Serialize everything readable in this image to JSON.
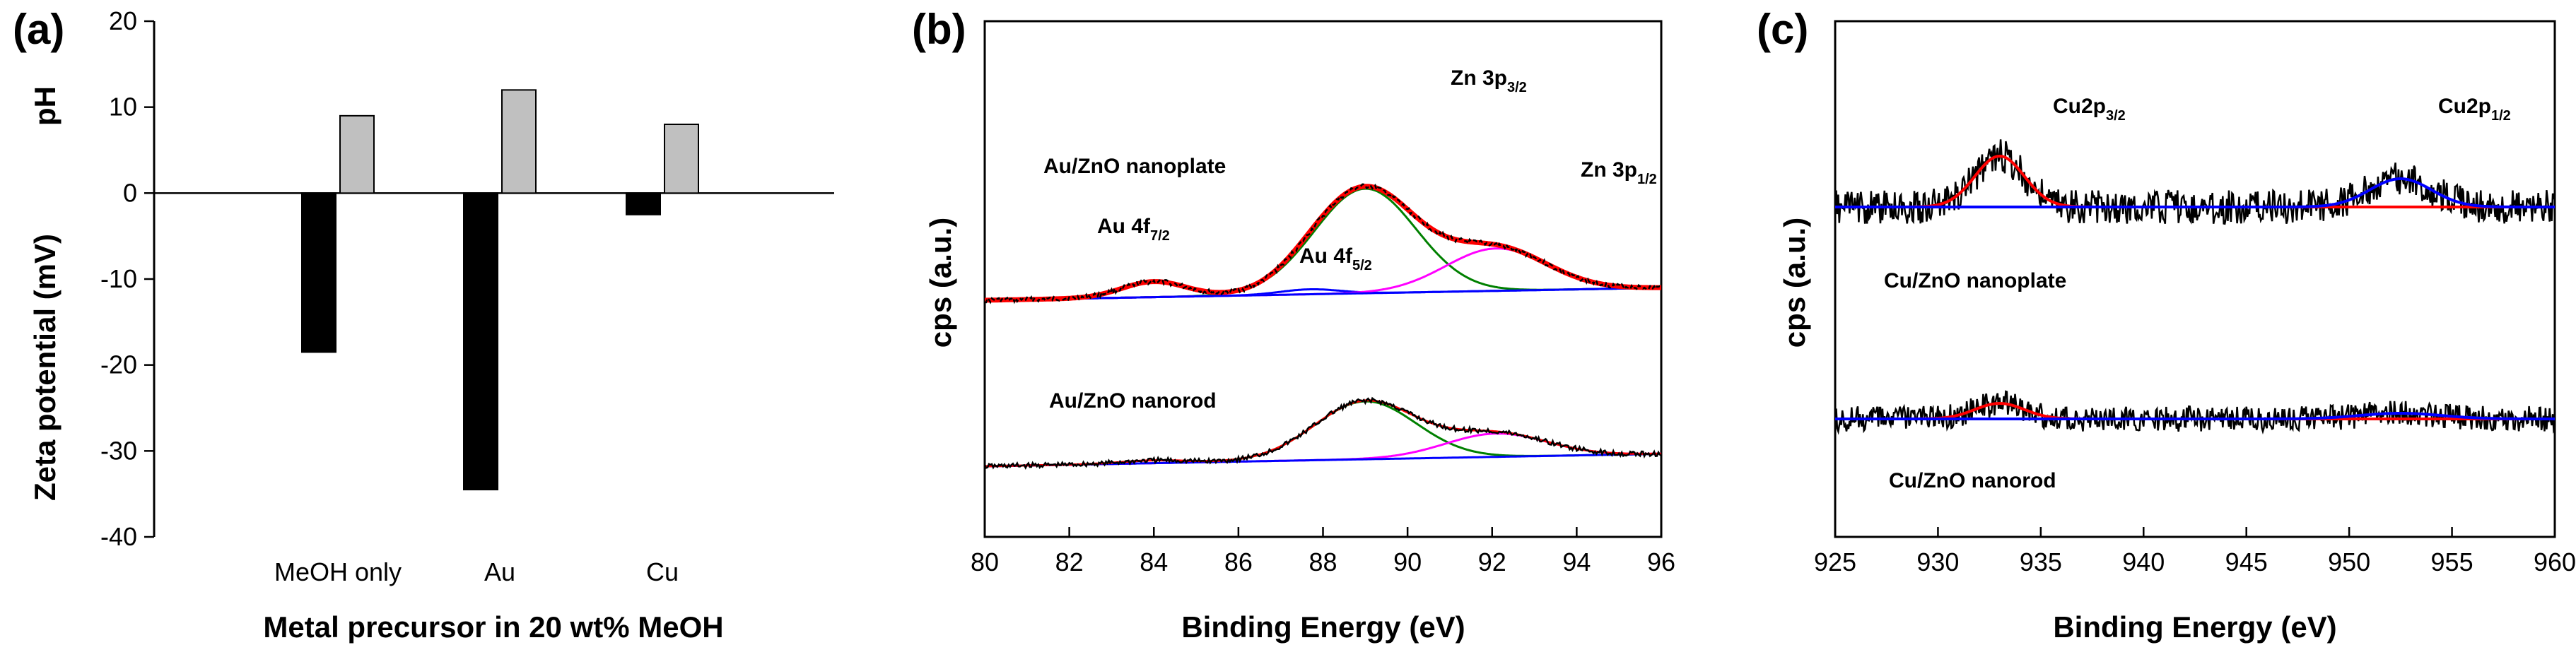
{
  "colors": {
    "black": "#000000",
    "gray": "#c0c0c0",
    "red": "#ff0000",
    "green": "#008000",
    "magenta": "#ff00ff",
    "blue": "#0000ff"
  },
  "chart_data": [
    {
      "type": "bar",
      "panel_label": "(a)",
      "categories": [
        "MeOH only",
        "Au",
        "Cu"
      ],
      "series": [
        {
          "name": "Zeta potential",
          "color": "#000000",
          "values": [
            -18.5,
            -34.5,
            -2.5
          ]
        },
        {
          "name": "pH",
          "color": "#c0c0c0",
          "values": [
            9,
            12,
            8
          ]
        }
      ],
      "ylim": [
        -40,
        20
      ],
      "yticks": [
        "20",
        "10",
        "0",
        "-10",
        "-20",
        "-30",
        "-40"
      ],
      "ylabel_top": "pH",
      "ylabel": "Zeta potential (mV)",
      "xlabel": "Metal precursor in 20 wt% MeOH",
      "grid": false
    },
    {
      "type": "line",
      "panel_label": "(b)",
      "xlabel": "Binding Energy (eV)",
      "ylabel": "cps (a.u.)",
      "xlim": [
        80,
        96
      ],
      "xticks": [
        "80",
        "82",
        "84",
        "86",
        "88",
        "90",
        "92",
        "94",
        "96"
      ],
      "annotations": {
        "nanoplate": "Au/ZnO nanoplate",
        "nanorod": "Au/ZnO nanorod",
        "au_f72_main": "Au 4f",
        "au_f72_sub": "7/2",
        "au_f52_main": "Au 4f",
        "au_f52_sub": "5/2",
        "zn_p32_main": "Zn 3p",
        "zn_p32_sub": "3/2",
        "zn_p12_main": "Zn 3p",
        "zn_p12_sub": "1/2"
      },
      "spectra": [
        {
          "name": "Au/ZnO nanoplate",
          "baseline": 185,
          "peaks": [
            {
              "label": "Au 4f7/2",
              "center": 84.0,
              "height": 22,
              "width": 0.75,
              "color": "#ff0000"
            },
            {
              "label": "Au 4f5/2",
              "center": 87.7,
              "height": 7,
              "width": 0.7,
              "color": "#0000ff"
            },
            {
              "label": "Zn 3p3/2",
              "center": 89.0,
              "height": 148,
              "width": 1.2,
              "color": "#008000"
            },
            {
              "label": "Zn 3p1/2",
              "center": 92.1,
              "height": 60,
              "width": 1.2,
              "color": "#ff00ff"
            }
          ]
        },
        {
          "name": "Au/ZnO nanorod",
          "baseline": 108,
          "peaks": [
            {
              "label": "Au 4f7/2",
              "center": 84.0,
              "height": 4,
              "width": 0.75,
              "color": "#ff0000"
            },
            {
              "label": "Zn 3p3/2",
              "center": 89.0,
              "height": 82,
              "width": 1.2,
              "color": "#008000"
            },
            {
              "label": "Zn 3p1/2",
              "center": 92.1,
              "height": 33,
              "width": 1.2,
              "color": "#ff00ff"
            }
          ]
        }
      ]
    },
    {
      "type": "line",
      "panel_label": "(c)",
      "xlabel": "Binding Energy (eV)",
      "ylabel": "cps (a.u.)",
      "xlim": [
        925,
        960
      ],
      "xticks": [
        "925",
        "930",
        "935",
        "940",
        "945",
        "950",
        "955",
        "960"
      ],
      "annotations": {
        "nanoplate": "Cu/ZnO nanoplate",
        "nanorod": "Cu/ZnO nanorod",
        "cu_p32_main": "Cu2p",
        "cu_p32_sub": "3/2",
        "cu_p12_main": "Cu2p",
        "cu_p12_sub": "1/2"
      },
      "spectra": [
        {
          "name": "Cu/ZnO nanoplate",
          "baseline": 120,
          "noise": 24,
          "peaks": [
            {
              "label": "Cu2p3/2",
              "center": 933.0,
              "height": 72,
              "width": 1.2,
              "color": "#ff0000"
            },
            {
              "label": "Cu2p1/2",
              "center": 952.5,
              "height": 40,
              "width": 1.5,
              "color": "#0000ff"
            }
          ]
        },
        {
          "name": "Cu/ZnO nanorod",
          "baseline": 72,
          "noise": 18,
          "peaks": [
            {
              "label": "Cu2p3/2",
              "center": 933.0,
              "height": 22,
              "width": 1.2,
              "color": "#ff0000"
            },
            {
              "label": "Cu2p1/2",
              "center": 952.5,
              "height": 8,
              "width": 2.0,
              "color": "#0000ff"
            }
          ]
        }
      ]
    }
  ]
}
